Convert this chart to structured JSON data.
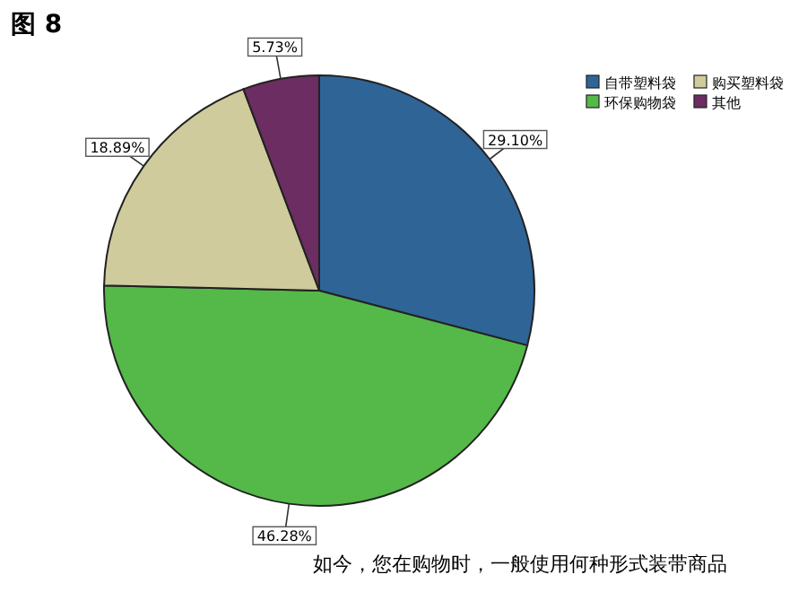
{
  "chart_data": {
    "type": "pie",
    "title": "图 8",
    "annotations": [
      "如今，您在购物时，一般使用何种形式装带商品"
    ],
    "categories": [
      "自带塑料袋",
      "环保购物袋",
      "购买塑料袋",
      "其他"
    ],
    "values": [
      29.1,
      46.28,
      18.89,
      5.73
    ],
    "colors": [
      "#2f6496",
      "#54b948",
      "#cfcb9c",
      "#6b2d62"
    ],
    "value_labels": [
      "29.10%",
      "46.28%",
      "18.89%",
      "5.73%"
    ],
    "legend": "top right"
  }
}
